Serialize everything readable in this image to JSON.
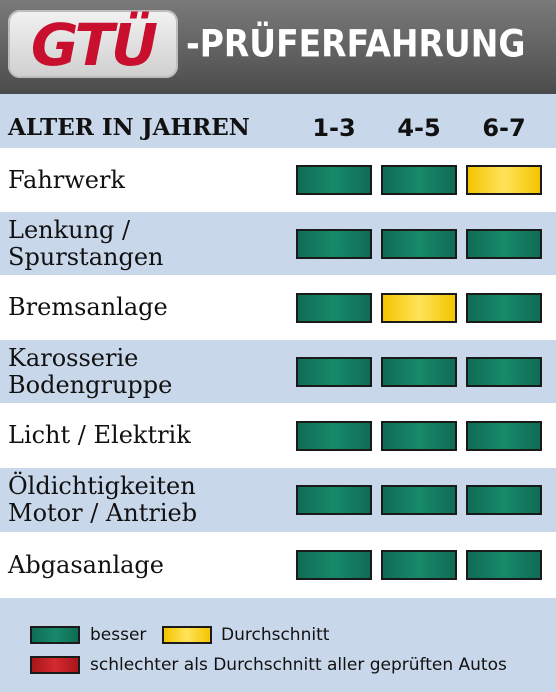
{
  "header": {
    "logo_text": "GTÜ",
    "title": "-PRÜFERFAHRUNG"
  },
  "chart_data": {
    "type": "table",
    "column_header": "ALTER IN JAHREN",
    "columns": [
      "1-3",
      "4-5",
      "6-7"
    ],
    "rows": [
      {
        "label": "Fahrwerk",
        "ratings": [
          "besser",
          "besser",
          "Durchschnitt"
        ]
      },
      {
        "label": "Lenkung /\nSpurstangen",
        "ratings": [
          "besser",
          "besser",
          "besser"
        ]
      },
      {
        "label": "Bremsanlage",
        "ratings": [
          "besser",
          "Durchschnitt",
          "besser"
        ]
      },
      {
        "label": "Karosserie\nBodengruppe",
        "ratings": [
          "besser",
          "besser",
          "besser"
        ]
      },
      {
        "label": "Licht / Elektrik",
        "ratings": [
          "besser",
          "besser",
          "besser"
        ]
      },
      {
        "label": "Öldichtigkeiten\nMotor / Antrieb",
        "ratings": [
          "besser",
          "besser",
          "besser"
        ]
      },
      {
        "label": "Abgasanlage",
        "ratings": [
          "besser",
          "besser",
          "besser"
        ]
      }
    ],
    "legend": [
      {
        "key": "besser",
        "label": "besser",
        "color": "#0f6b55"
      },
      {
        "key": "Durchschnitt",
        "label": "Durchschnitt",
        "color": "#f3c400"
      },
      {
        "key": "schlechter",
        "label": "schlechter als Durchschnitt aller geprüften Autos",
        "color": "#c41e24"
      }
    ]
  }
}
